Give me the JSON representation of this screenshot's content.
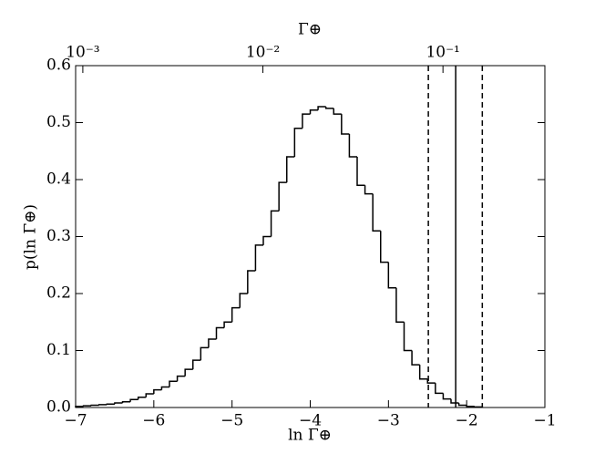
{
  "chart_data": {
    "type": "histogram",
    "xlabel": "ln Γ⊕",
    "ylabel": "p(ln Γ⊕)",
    "x2label": "Γ⊕",
    "bins": [
      -7.0,
      -6.9,
      -6.8,
      -6.7,
      -6.6,
      -6.5,
      -6.4,
      -6.3,
      -6.2,
      -6.1,
      -6.0,
      -5.9,
      -5.8,
      -5.7,
      -5.6,
      -5.5,
      -5.4,
      -5.3,
      -5.2,
      -5.1,
      -5.0,
      -4.9,
      -4.8,
      -4.7,
      -4.6,
      -4.5,
      -4.4,
      -4.3,
      -4.2,
      -4.1,
      -4.0,
      -3.9,
      -3.8,
      -3.7,
      -3.6,
      -3.5,
      -3.4,
      -3.3,
      -3.2,
      -3.1,
      -3.0,
      -2.9,
      -2.8,
      -2.7,
      -2.6,
      -2.5,
      -2.4,
      -2.3,
      -2.2,
      -2.1,
      -2.0,
      -1.9,
      -1.8
    ],
    "values": [
      0.002,
      0.003,
      0.004,
      0.005,
      0.006,
      0.008,
      0.01,
      0.014,
      0.018,
      0.024,
      0.031,
      0.036,
      0.046,
      0.055,
      0.067,
      0.083,
      0.105,
      0.12,
      0.14,
      0.15,
      0.175,
      0.2,
      0.24,
      0.285,
      0.3,
      0.345,
      0.395,
      0.44,
      0.49,
      0.515,
      0.522,
      0.528,
      0.525,
      0.515,
      0.48,
      0.44,
      0.39,
      0.375,
      0.31,
      0.255,
      0.21,
      0.15,
      0.1,
      0.075,
      0.05,
      0.043,
      0.025,
      0.015,
      0.008,
      0.004,
      0.002,
      0.001
    ],
    "color": "#000000",
    "xlim": [
      -7,
      -1
    ],
    "xticks": [
      {
        "value": -7,
        "label": "−7"
      },
      {
        "value": -6,
        "label": "−6"
      },
      {
        "value": -5,
        "label": "−5"
      },
      {
        "value": -4,
        "label": "−4"
      },
      {
        "value": -3,
        "label": "−3"
      },
      {
        "value": -2,
        "label": "−2"
      },
      {
        "value": -1,
        "label": "−1"
      }
    ],
    "ylim": [
      0,
      0.6
    ],
    "yticks": [
      {
        "value": 0,
        "label": "0.0"
      },
      {
        "value": 0.1,
        "label": "0.1"
      },
      {
        "value": 0.2,
        "label": "0.2"
      },
      {
        "value": 0.3,
        "label": "0.3"
      },
      {
        "value": 0.4,
        "label": "0.4"
      },
      {
        "value": 0.5,
        "label": "0.5"
      },
      {
        "value": 0.6,
        "label": "0.6"
      }
    ],
    "x2lim": [
      0.000912,
      0.368
    ],
    "x2scale": "log",
    "x2ticks": [
      {
        "value": 0.001,
        "label": "10⁻³"
      },
      {
        "value": 0.01,
        "label": "10⁻²"
      },
      {
        "value": 0.1,
        "label": "10⁻¹"
      }
    ],
    "vlines": [
      {
        "value": -2.49,
        "style": "dashed"
      },
      {
        "value": -2.14,
        "style": "solid"
      },
      {
        "value": -1.8,
        "style": "dashed"
      }
    ]
  }
}
